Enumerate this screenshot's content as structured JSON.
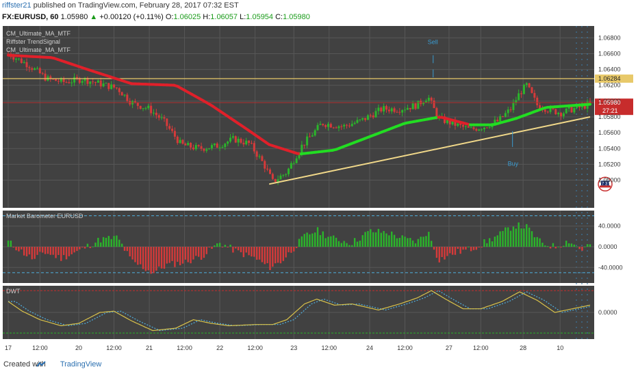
{
  "header": {
    "author": "riffster21",
    "published": "published on TradingView.com, February 28, 2017 07:32 EST"
  },
  "quote": {
    "symbol": "FX:EURUSD, 60",
    "price": "1.05980",
    "change": "+0.00120 (+0.11%)",
    "o_label": "O:",
    "o": "1.06025",
    "h_label": "H:",
    "h": "1.06057",
    "l_label": "L:",
    "l": "1.05954",
    "c_label": "C:",
    "c": "1.05980"
  },
  "indicators": [
    "CM_Ultimate_MA_MTF",
    "Riffster TrendSignal",
    "CM_Ultimate_MA_MTF"
  ],
  "annotations": {
    "sell": "Sell",
    "buy": "Buy"
  },
  "last_price_tag": {
    "price": "1.05980",
    "countdown": "27:21"
  },
  "resistance_tag": "1.06284",
  "flag_text": "7 3 5",
  "footer": {
    "created": "Created with",
    "brand": "TradingView"
  },
  "colors": {
    "background": "#414141",
    "grid": "#575757",
    "bull": "#2bb52b",
    "bear": "#d63a3a",
    "ma_up": "#22dd22",
    "ma_down": "#e0202a",
    "trendline": "#f2d98a",
    "resistance": "#e8c96a",
    "last_price": "#b03030",
    "dwt_yellow": "#d9c24a",
    "dwt_blue": "#4fb0e0"
  },
  "chart_data": [
    {
      "type": "candlestick",
      "title": "FX:EURUSD, 60",
      "ylim": [
        1.0465,
        1.0695
      ],
      "yticks": [
        "1.06800",
        "1.06600",
        "1.06400",
        "1.06200",
        "1.06000",
        "1.05800",
        "1.05600",
        "1.05400",
        "1.05200",
        "1.05000"
      ],
      "x_ticks": [
        "17",
        "12:00",
        "20",
        "12:00",
        "21",
        "12:00",
        "22",
        "12:00",
        "23",
        "12:00",
        "24",
        "12:00",
        "27",
        "12:00",
        "28",
        "10"
      ],
      "close_path": [
        [
          0,
          1.066
        ],
        [
          12,
          1.0645
        ],
        [
          22,
          1.0628
        ],
        [
          32,
          1.0624
        ],
        [
          42,
          1.0628
        ],
        [
          52,
          1.0622
        ],
        [
          62,
          1.0616
        ],
        [
          70,
          1.0598
        ],
        [
          80,
          1.059
        ],
        [
          88,
          1.0575
        ],
        [
          98,
          1.0545
        ],
        [
          108,
          1.054
        ],
        [
          118,
          1.0543
        ],
        [
          128,
          1.0552
        ],
        [
          137,
          1.0546
        ],
        [
          145,
          1.052
        ],
        [
          150,
          1.0498
        ],
        [
          158,
          1.051
        ],
        [
          166,
          1.0542
        ],
        [
          178,
          1.0572
        ],
        [
          190,
          1.0568
        ],
        [
          200,
          1.0575
        ],
        [
          212,
          1.059
        ],
        [
          222,
          1.059
        ],
        [
          232,
          1.0595
        ],
        [
          238,
          1.0606
        ],
        [
          244,
          1.0578
        ],
        [
          254,
          1.057
        ],
        [
          262,
          1.0564
        ],
        [
          270,
          1.0568
        ],
        [
          278,
          1.0575
        ],
        [
          285,
          1.059
        ],
        [
          290,
          1.061
        ],
        [
          294,
          1.062
        ],
        [
          300,
          1.0595
        ],
        [
          308,
          1.0588
        ],
        [
          314,
          1.0585
        ],
        [
          320,
          1.059
        ],
        [
          326,
          1.0593
        ],
        [
          330,
          1.0597
        ]
      ],
      "overlays": [
        {
          "name": "CM_Ultimate_MA_MTF",
          "points": [
            [
              0,
              1.0658
            ],
            [
              25,
              1.0655
            ],
            [
              45,
              1.064
            ],
            [
              70,
              1.0622
            ],
            [
              95,
              1.062
            ],
            [
              115,
              1.0595
            ],
            [
              135,
              1.0565
            ],
            [
              148,
              1.0545
            ],
            [
              165,
              1.0533
            ],
            [
              185,
              1.0538
            ],
            [
              205,
              1.0555
            ],
            [
              225,
              1.0572
            ],
            [
              245,
              1.058
            ],
            [
              262,
              1.057
            ],
            [
              275,
              1.057
            ],
            [
              288,
              1.0578
            ],
            [
              305,
              1.0592
            ],
            [
              330,
              1.0596
            ]
          ]
        },
        {
          "name": "trendline",
          "points": [
            [
              148,
              1.0495
            ],
            [
              330,
              1.058
            ]
          ]
        },
        {
          "name": "resistance",
          "value": 1.06284
        },
        {
          "name": "last_price",
          "value": 1.0598
        }
      ]
    },
    {
      "type": "bar",
      "title": "Market Barometer EURUSD",
      "ylim": [
        -70,
        70
      ],
      "yticks": [
        "40.0000",
        "0.0000",
        "-40.0000"
      ],
      "reference_lines": [
        60,
        -50
      ],
      "series_points": [
        [
          0,
          10
        ],
        [
          10,
          -15
        ],
        [
          15,
          -25
        ],
        [
          20,
          -10
        ],
        [
          30,
          -22
        ],
        [
          40,
          -8
        ],
        [
          52,
          14
        ],
        [
          62,
          18
        ],
        [
          70,
          -28
        ],
        [
          82,
          -50
        ],
        [
          90,
          -35
        ],
        [
          100,
          -30
        ],
        [
          110,
          -18
        ],
        [
          120,
          8
        ],
        [
          130,
          -10
        ],
        [
          140,
          -22
        ],
        [
          148,
          -40
        ],
        [
          155,
          -28
        ],
        [
          160,
          -10
        ],
        [
          168,
          20
        ],
        [
          175,
          32
        ],
        [
          185,
          15
        ],
        [
          195,
          8
        ],
        [
          205,
          30
        ],
        [
          215,
          28
        ],
        [
          225,
          15
        ],
        [
          232,
          10
        ],
        [
          238,
          30
        ],
        [
          244,
          -25
        ],
        [
          255,
          -10
        ],
        [
          262,
          -5
        ],
        [
          270,
          8
        ],
        [
          278,
          22
        ],
        [
          287,
          42
        ],
        [
          294,
          38
        ],
        [
          302,
          8
        ],
        [
          310,
          0
        ],
        [
          318,
          12
        ],
        [
          325,
          -6
        ],
        [
          332,
          10
        ]
      ]
    },
    {
      "type": "line",
      "title": "DWT",
      "ylim": [
        -1.1,
        1.1
      ],
      "yticks": [
        "0.0000"
      ],
      "series_points": [
        [
          0,
          0.45
        ],
        [
          8,
          0.05
        ],
        [
          18,
          -0.3
        ],
        [
          30,
          -0.55
        ],
        [
          40,
          -0.45
        ],
        [
          52,
          0.0
        ],
        [
          60,
          0.05
        ],
        [
          70,
          -0.35
        ],
        [
          82,
          -0.75
        ],
        [
          95,
          -0.65
        ],
        [
          105,
          -0.3
        ],
        [
          115,
          -0.45
        ],
        [
          125,
          -0.55
        ],
        [
          140,
          -0.5
        ],
        [
          150,
          -0.5
        ],
        [
          158,
          -0.3
        ],
        [
          168,
          0.35
        ],
        [
          175,
          0.55
        ],
        [
          185,
          0.3
        ],
        [
          195,
          0.35
        ],
        [
          210,
          0.1
        ],
        [
          222,
          0.35
        ],
        [
          232,
          0.6
        ],
        [
          240,
          0.9
        ],
        [
          248,
          0.55
        ],
        [
          258,
          0.15
        ],
        [
          268,
          0.15
        ],
        [
          280,
          0.45
        ],
        [
          290,
          0.85
        ],
        [
          300,
          0.5
        ],
        [
          310,
          0.0
        ],
        [
          320,
          0.15
        ],
        [
          330,
          0.3
        ]
      ]
    }
  ]
}
